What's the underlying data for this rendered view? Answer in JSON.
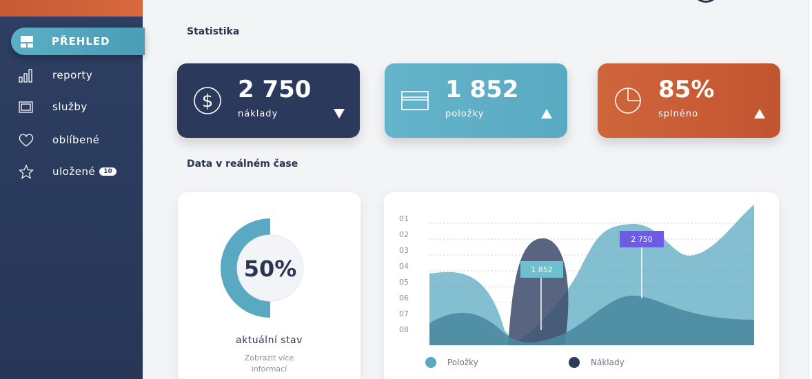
{
  "sidebar": {
    "active": {
      "label": "PŘEHLED",
      "icon": "dashboard-icon"
    },
    "items": [
      {
        "label": "reporty",
        "icon": "bar-chart-icon"
      },
      {
        "label": "služby",
        "icon": "services-icon"
      },
      {
        "label": "oblíbené",
        "icon": "heart-icon"
      },
      {
        "label": "uložené",
        "icon": "star-icon",
        "badge": "10"
      }
    ]
  },
  "main": {
    "stats_title": "Statistika",
    "realtime_title": "Data v reálném čase"
  },
  "cards": [
    {
      "value": "2 750",
      "label": "náklady",
      "icon": "dollar-icon",
      "trend": "down",
      "color": "#2b3a5c"
    },
    {
      "value": "1 852",
      "label": "položky",
      "icon": "card-icon",
      "trend": "up",
      "color": "#5aa9c2"
    },
    {
      "value": "85%",
      "label": "splněno",
      "icon": "pie-icon",
      "trend": "up",
      "color": "#c9593a"
    }
  ],
  "donut": {
    "value_text": "50%",
    "percent": 50,
    "label": "aktuální stav",
    "link_line1": "Zobrazit více",
    "link_line2": "informací",
    "color": "#5aa9c2"
  },
  "chart_data": {
    "type": "area",
    "y_tick_labels": [
      "01",
      "02",
      "03",
      "04",
      "05",
      "06",
      "07",
      "08"
    ],
    "series": [
      {
        "name": "Položky",
        "color": "#5aa9c2"
      },
      {
        "name": "Náklady",
        "color": "#2b3a5c"
      }
    ],
    "annotations": [
      {
        "text": "1 852",
        "color": "#6cc0cf"
      },
      {
        "text": "2 750",
        "color": "#6e5ce6"
      }
    ],
    "legend": "bottom",
    "grid": true
  }
}
